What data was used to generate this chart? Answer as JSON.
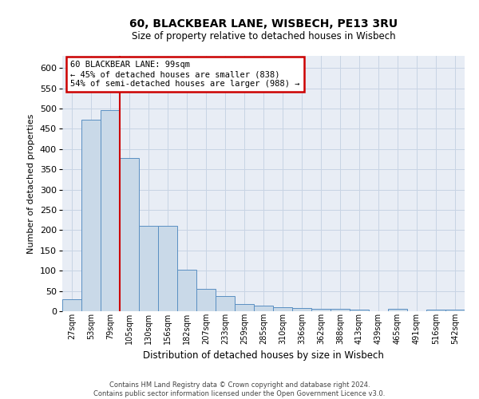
{
  "title_line1": "60, BLACKBEAR LANE, WISBECH, PE13 3RU",
  "title_line2": "Size of property relative to detached houses in Wisbech",
  "xlabel": "Distribution of detached houses by size in Wisbech",
  "ylabel": "Number of detached properties",
  "categories": [
    "27sqm",
    "53sqm",
    "79sqm",
    "105sqm",
    "130sqm",
    "156sqm",
    "182sqm",
    "207sqm",
    "233sqm",
    "259sqm",
    "285sqm",
    "310sqm",
    "336sqm",
    "362sqm",
    "388sqm",
    "413sqm",
    "439sqm",
    "465sqm",
    "491sqm",
    "516sqm",
    "542sqm"
  ],
  "values": [
    30,
    473,
    497,
    378,
    210,
    210,
    103,
    55,
    37,
    18,
    13,
    10,
    7,
    5,
    5,
    4,
    0,
    5,
    0,
    3,
    4
  ],
  "bar_color": "#c9d9e8",
  "bar_edge_color": "#5a8fc2",
  "vline_x": 2.5,
  "vline_color": "#cc0000",
  "annotation_text": "60 BLACKBEAR LANE: 99sqm\n← 45% of detached houses are smaller (838)\n54% of semi-detached houses are larger (988) →",
  "annotation_box_color": "#ffffff",
  "annotation_box_edge": "#cc0000",
  "footer_line1": "Contains HM Land Registry data © Crown copyright and database right 2024.",
  "footer_line2": "Contains public sector information licensed under the Open Government Licence v3.0.",
  "ylim_max": 630,
  "yticks": [
    0,
    50,
    100,
    150,
    200,
    250,
    300,
    350,
    400,
    450,
    500,
    550,
    600
  ],
  "grid_color": "#c8d4e4",
  "bg_color": "#e8edf5",
  "fig_width": 6.0,
  "fig_height": 5.0,
  "fig_dpi": 100
}
